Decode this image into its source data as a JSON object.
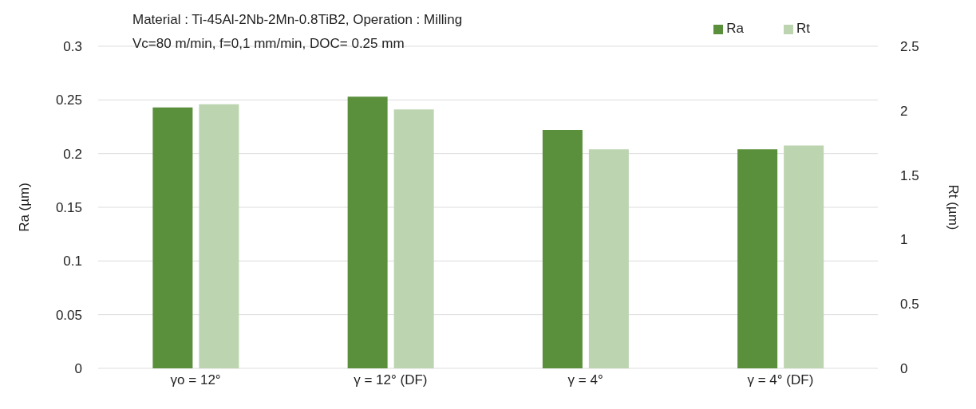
{
  "chart_data": {
    "type": "bar",
    "title": "Material : Ti-45Al-2Nb-2Mn-0.8TiB2, Operation : Milling",
    "subtitle": "Vc=80 m/min, f=0,1 mm/min, DOC= 0.25 mm",
    "categories": [
      "γo = 12°",
      "γ = 12° (DF)",
      "γ = 4°",
      "γ = 4° (DF)"
    ],
    "series": [
      {
        "name": "Ra",
        "color": "#5a8f3c",
        "values": [
          0.243,
          0.253,
          0.222,
          0.204
        ]
      },
      {
        "name": "Rt",
        "color": "#bcd5b0",
        "axis": "y2",
        "values": [
          2.05,
          2.01,
          1.7,
          1.73
        ]
      }
    ],
    "ylabel": "Ra (µm)",
    "y2label": "Rt (µm)",
    "ylim": [
      0,
      0.3
    ],
    "yticks": [
      0,
      0.05,
      0.1,
      0.15,
      0.2,
      0.25,
      0.3
    ],
    "y2lim": [
      0,
      2.5
    ],
    "y2ticks": [
      0,
      0.5,
      1,
      1.5,
      2,
      2.5
    ],
    "grid": "y",
    "legend": "top right"
  }
}
